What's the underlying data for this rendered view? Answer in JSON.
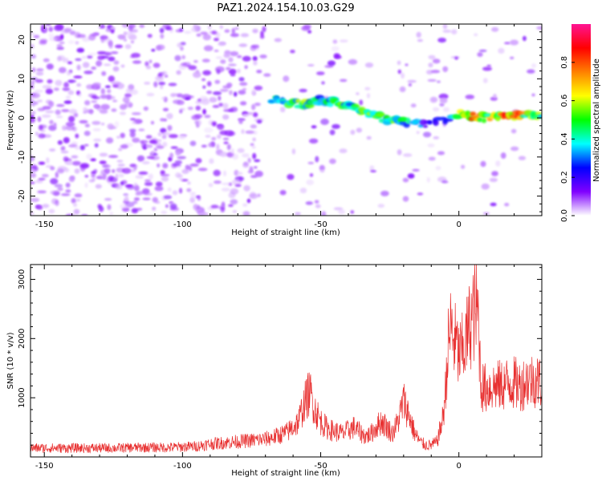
{
  "figure": {
    "title": "PAZ1.2024.154.10.03.G29"
  },
  "chart_data": [
    {
      "type": "heatmap",
      "title": "PAZ1.2024.154.10.03.G29",
      "xlabel": "Height of straight line (km)",
      "ylabel": "Frequency (Hz)",
      "xlim": [
        -155,
        30
      ],
      "ylim": [
        -25,
        24
      ],
      "x_ticks": [
        -150,
        -100,
        -50,
        0
      ],
      "y_ticks": [
        -20,
        -10,
        0,
        10,
        20
      ],
      "colorbar": {
        "label": "Normalized spectral amplitude",
        "range": [
          0,
          1
        ],
        "ticks": [
          0.0,
          0.2,
          0.4,
          0.6,
          0.8
        ],
        "colormap": [
          "#ffffff",
          "#8000ff",
          "#0000ff",
          "#00ffff",
          "#00ff00",
          "#ffff00",
          "#ff8000",
          "#ff0000",
          "#ff1493"
        ]
      },
      "signal_track": [
        {
          "x": -68,
          "y": 5.0,
          "amp": 0.45
        },
        {
          "x": -62,
          "y": 4.0,
          "amp": 0.5
        },
        {
          "x": -56,
          "y": 3.5,
          "amp": 0.5
        },
        {
          "x": -50,
          "y": 4.5,
          "amp": 0.4
        },
        {
          "x": -45,
          "y": 4.0,
          "amp": 0.5
        },
        {
          "x": -40,
          "y": 3.0,
          "amp": 0.45
        },
        {
          "x": -35,
          "y": 1.5,
          "amp": 0.5
        },
        {
          "x": -30,
          "y": 0.5,
          "amp": 0.5
        },
        {
          "x": -25,
          "y": -0.5,
          "amp": 0.5
        },
        {
          "x": -20,
          "y": -1.0,
          "amp": 0.4
        },
        {
          "x": -10,
          "y": -1.5,
          "amp": 0.2
        },
        {
          "x": 0,
          "y": 1.0,
          "amp": 0.5
        },
        {
          "x": 5,
          "y": 0.5,
          "amp": 0.7
        },
        {
          "x": 10,
          "y": 0.0,
          "amp": 0.6
        },
        {
          "x": 15,
          "y": 0.5,
          "amp": 0.7
        },
        {
          "x": 20,
          "y": 0.5,
          "amp": 0.8
        },
        {
          "x": 25,
          "y": 0.5,
          "amp": 0.6
        },
        {
          "x": 30,
          "y": 0.5,
          "amp": 0.5
        }
      ]
    },
    {
      "type": "line",
      "xlabel": "Height of straight line (km)",
      "ylabel": "SNR (10 * v/v)",
      "xlim": [
        -155,
        30
      ],
      "ylim": [
        0,
        3250
      ],
      "x_ticks": [
        -150,
        -100,
        -50,
        0
      ],
      "y_ticks": [
        1000,
        2000,
        3000
      ],
      "color": "#e83030",
      "series": [
        {
          "x": [
            -155,
            -145,
            -135,
            -125,
            -115,
            -105,
            -95,
            -90,
            -85,
            -80,
            -75,
            -70,
            -66,
            -62,
            -58,
            -56,
            -54,
            -52,
            -50,
            -48,
            -46,
            -44,
            -42,
            -40,
            -38,
            -36,
            -34,
            -32,
            -30,
            -28,
            -26,
            -24,
            -22,
            -20,
            -18,
            -16,
            -14,
            -12,
            -10,
            -8,
            -6,
            -5,
            -4,
            -3,
            -2,
            -1,
            0,
            2,
            4,
            6,
            7,
            8,
            10,
            12,
            15,
            18,
            20,
            22,
            25,
            28,
            30
          ],
          "y": [
            150,
            150,
            150,
            150,
            160,
            160,
            180,
            220,
            240,
            260,
            280,
            300,
            350,
            420,
            600,
            900,
            1100,
            800,
            600,
            500,
            450,
            420,
            400,
            450,
            500,
            420,
            350,
            380,
            500,
            600,
            500,
            400,
            600,
            950,
            700,
            400,
            250,
            200,
            200,
            250,
            600,
            1000,
            1800,
            2200,
            2000,
            1900,
            1700,
            1850,
            2250,
            2500,
            2400,
            1200,
            1150,
            1200,
            1200,
            1250,
            1250,
            1200,
            1300,
            1300,
            1250
          ]
        }
      ]
    }
  ]
}
